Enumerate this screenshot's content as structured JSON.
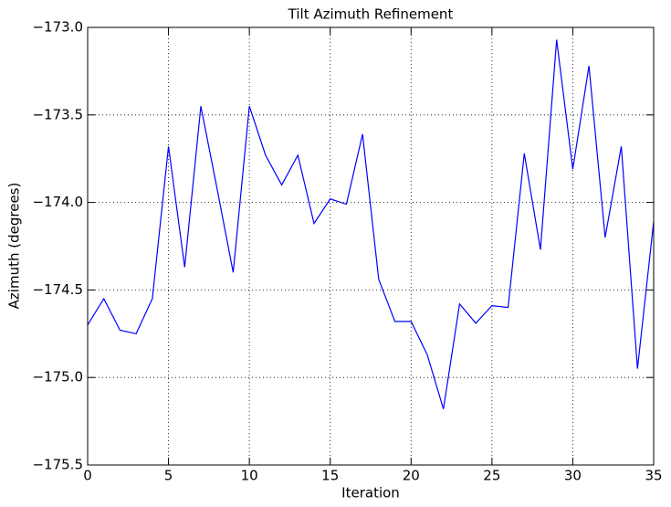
{
  "chart_data": {
    "type": "line",
    "title": "Tilt Azimuth Refinement",
    "x_label": "Iteration",
    "y_label": "Azimuth (degrees)",
    "x": [
      0,
      1,
      2,
      3,
      4,
      5,
      6,
      7,
      8,
      9,
      10,
      11,
      12,
      13,
      14,
      15,
      16,
      17,
      18,
      19,
      20,
      21,
      22,
      23,
      24,
      25,
      26,
      27,
      28,
      29,
      30,
      31,
      32,
      33,
      34,
      35
    ],
    "values": [
      -174.7,
      -174.55,
      -174.73,
      -174.75,
      -174.55,
      -173.68,
      -174.37,
      -173.45,
      -173.92,
      -174.4,
      -173.45,
      -173.73,
      -173.9,
      -173.73,
      -174.12,
      -173.98,
      -174.01,
      -173.61,
      -174.44,
      -174.68,
      -174.68,
      -174.87,
      -175.18,
      -174.58,
      -174.69,
      -174.59,
      -174.6,
      -173.72,
      -174.27,
      -173.07,
      -173.81,
      -173.22,
      -174.2,
      -173.68,
      -174.95,
      -174.11
    ],
    "color": "#0000ff",
    "xlim": [
      0,
      35
    ],
    "xticks": [
      0,
      5,
      10,
      15,
      20,
      25,
      30,
      35
    ],
    "ylim": [
      -175.5,
      -173.0
    ],
    "yticks": [
      {
        "value": -175.5,
        "label": "−175.5"
      },
      {
        "value": -175.0,
        "label": "−175.0"
      },
      {
        "value": -174.5,
        "label": "−174.5"
      },
      {
        "value": -174.0,
        "label": "−174.0"
      },
      {
        "value": -173.5,
        "label": "−173.5"
      },
      {
        "value": -173.0,
        "label": "−173.0"
      }
    ],
    "grid": true
  }
}
